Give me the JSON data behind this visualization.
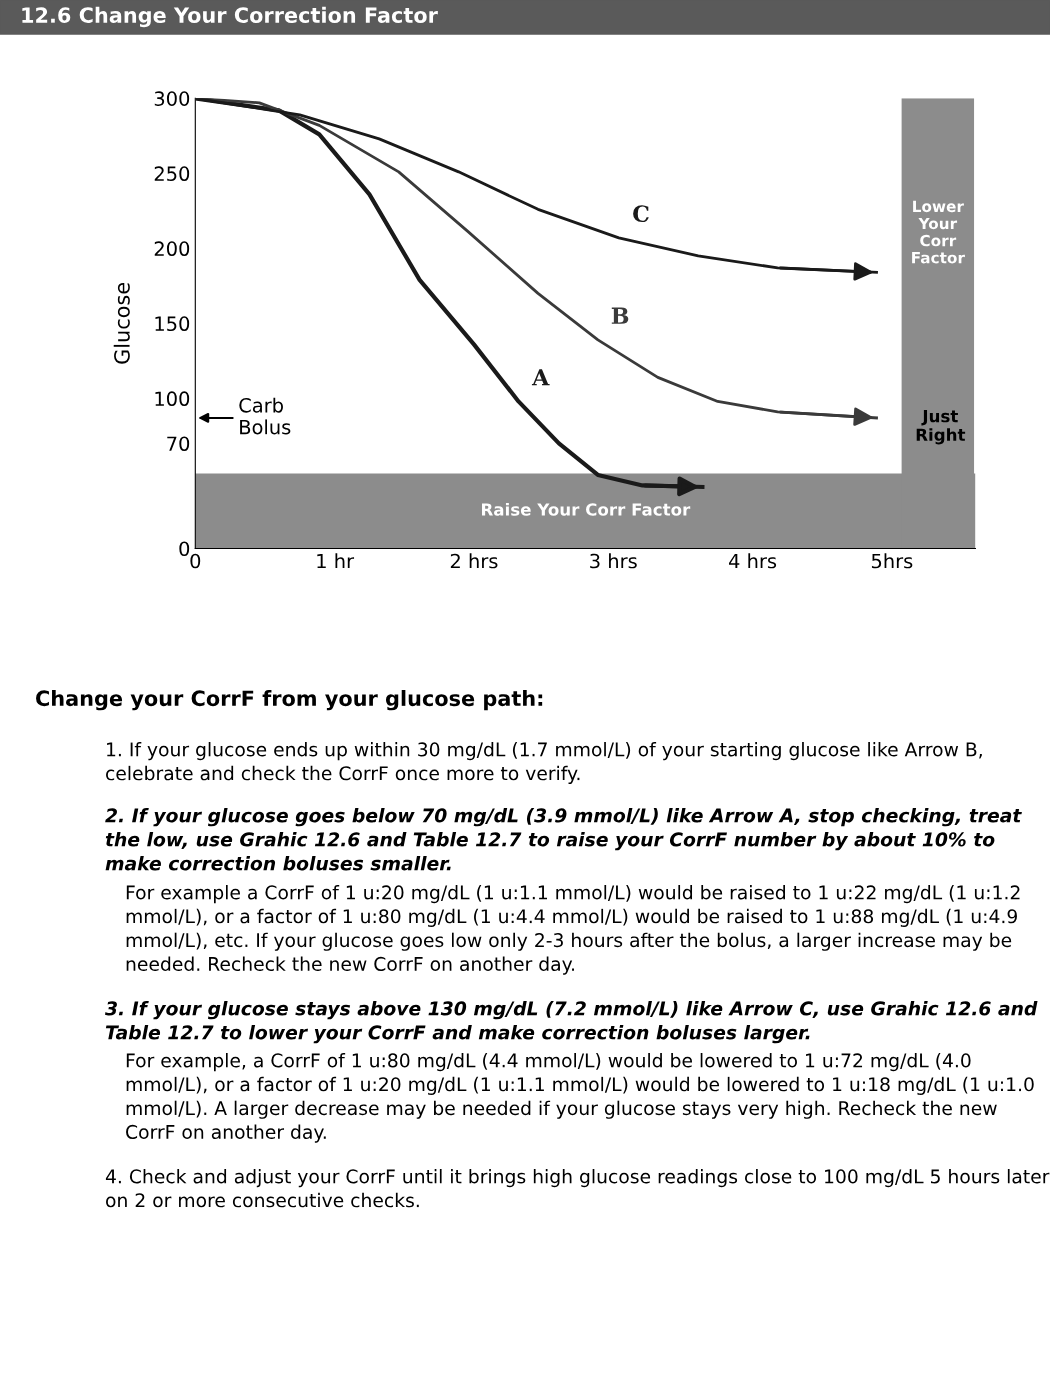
{
  "chart_data": {
    "type": "line",
    "title": "12.6 Change Your Correction Factor",
    "ylabel": "Glucose",
    "x": [
      0,
      0.6,
      0.89,
      1.25,
      1.61,
      2.0,
      2.32,
      2.61,
      2.89,
      3.21,
      3.64
    ],
    "xlim": [
      0,
      5.6
    ],
    "xticks": [
      0,
      {
        "value": 1,
        "label": "1 hr"
      },
      {
        "value": 2,
        "label": "2 hrs"
      },
      {
        "value": 3,
        "label": "3 hrs"
      },
      {
        "value": 4,
        "label": "4 hrs"
      },
      {
        "value": 5,
        "label": "5hrs"
      }
    ],
    "ylim": [
      0,
      300
    ],
    "yticks": [
      0,
      70,
      100,
      150,
      200,
      250,
      300
    ],
    "grid": false,
    "marker": "none",
    "line_style": "solid",
    "series": [
      {
        "name": "A",
        "color": "#1a1a1a",
        "values": [
          300,
          292,
          276,
          236,
          179,
          136,
          98,
          70,
          49,
          42,
          41
        ]
      },
      {
        "name": "B",
        "color": "#3a3a3a",
        "x": [
          0,
          0.46,
          0.89,
          1.46,
          1.96,
          2.46,
          2.89,
          3.32,
          3.75,
          4.18,
          4.89
        ],
        "values": [
          300,
          297,
          282,
          251,
          211,
          170,
          139,
          114,
          98,
          91,
          87
        ]
      },
      {
        "name": "C",
        "color": "#1a1a1a",
        "x": [
          0,
          0.75,
          1.32,
          1.89,
          2.46,
          3.04,
          3.61,
          4.18,
          4.89
        ],
        "values": [
          300,
          289,
          273,
          251,
          226,
          207,
          195,
          187,
          184
        ]
      }
    ],
    "bands": [
      {
        "axis": "y",
        "from": 0,
        "to": 50,
        "label": "Raise Your Corr Factor",
        "color": "#8c8c8c"
      },
      {
        "axis": "x",
        "from": 5.07,
        "to": 5.59,
        "label": "Lower Your Corr Factor",
        "color": "#8c8c8c"
      }
    ],
    "annotations": [
      "Carb Bolus",
      "Just Right",
      "Change your CorrF from your glucose path:",
      "1. If your glucose ends up within 30 mg/dL (1.7 mmol/L) of your starting glucose like Arrow B, celebrate and check the CorrF once more to verify.",
      "2. If your glucose goes below 70 mg/dL (3.9 mmol/L) like Arrow A, stop checking, treat the low, use Grahic 12.6 and Table 12.7 to raise your CorrF number by about 10% to make correction boluses smaller.",
      "For example a CorrF of 1 u:20 mg/dL (1 u:1.1 mmol/L) would be raised to 1 u:22 mg/dL (1 u:1.2 mmol/L), or a factor of 1 u:80 mg/dL (1 u:4.4 mmol/L) would be raised to 1 u:88 mg/dL (1 u:4.9 mmol/L), etc. If your glucose goes low only 2-3 hours after the bolus, a larger increase may be needed. Recheck the new CorrF on another day.",
      "3. If your glucose stays above 130 mg/dL (7.2 mmol/L) like Arrow C, use Grahic 12.6 and Table 12.7 to lower your CorrF and make correction boluses larger.",
      "For example, a CorrF of 1 u:80 mg/dL (4.4 mmol/L) would be lowered to 1 u:72 mg/dL (4.0 mmol/L), or a factor of 1 u:20 mg/dL (1 u:1.1 mmol/L) would be lowered to 1 u:18 mg/dL (1 u:1.0 mmol/L). A larger decrease may be needed if your glucose stays very high. Recheck the new CorrF on another day.",
      "4. Check and adjust your CorrF until it brings high glucose readings close to 100 mg/dL 5 hours later on 2 or more consecutive checks."
    ]
  }
}
